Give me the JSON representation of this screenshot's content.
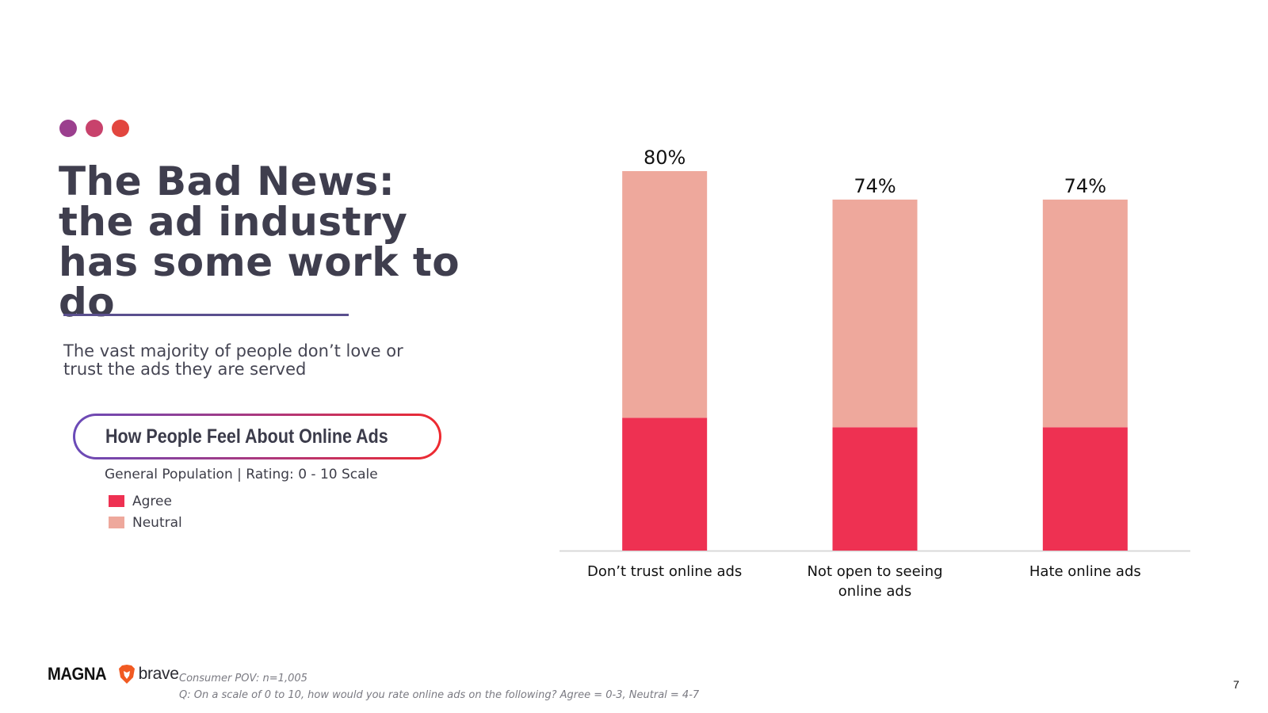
{
  "slide": {
    "title": "The Bad News: the ad industry has some work to do",
    "subtitle": "The vast majority of people don’t love or trust the ads they are served",
    "dot_colors": [
      "#9b3f8e",
      "#c8426c",
      "#e2463f"
    ],
    "page_number": "7"
  },
  "chart_header": {
    "pill_title": "How People Feel About Online Ads",
    "subheading": "General Population | Rating: 0 - 10 Scale"
  },
  "legend": {
    "items": [
      {
        "label": "Agree",
        "color": "#ee3152"
      },
      {
        "label": "Neutral",
        "color": "#eea89c"
      }
    ]
  },
  "chart_data": {
    "type": "bar",
    "stacked": true,
    "categories": [
      "Don’t trust online ads",
      "Not open to seeing online ads",
      "Hate online ads"
    ],
    "series": [
      {
        "name": "Agree",
        "values": [
          28,
          26,
          26
        ],
        "color": "#ee3152"
      },
      {
        "name": "Neutral",
        "values": [
          52,
          48,
          48
        ],
        "color": "#eea89c"
      }
    ],
    "total_labels": [
      "80%",
      "74%",
      "74%"
    ],
    "totals": [
      80,
      74,
      74
    ],
    "ylim": [
      0,
      80
    ],
    "grid": false,
    "axis_line_color": "#d9d9d9"
  },
  "footer": {
    "logo_magna": "MAGNA",
    "logo_brave": "brave",
    "source_line1": "Consumer POV: n=1,005",
    "source_line2": "Q: On a scale of 0 to 10, how would you rate online ads on the following? Agree = 0-3, Neutral = 4-7"
  }
}
